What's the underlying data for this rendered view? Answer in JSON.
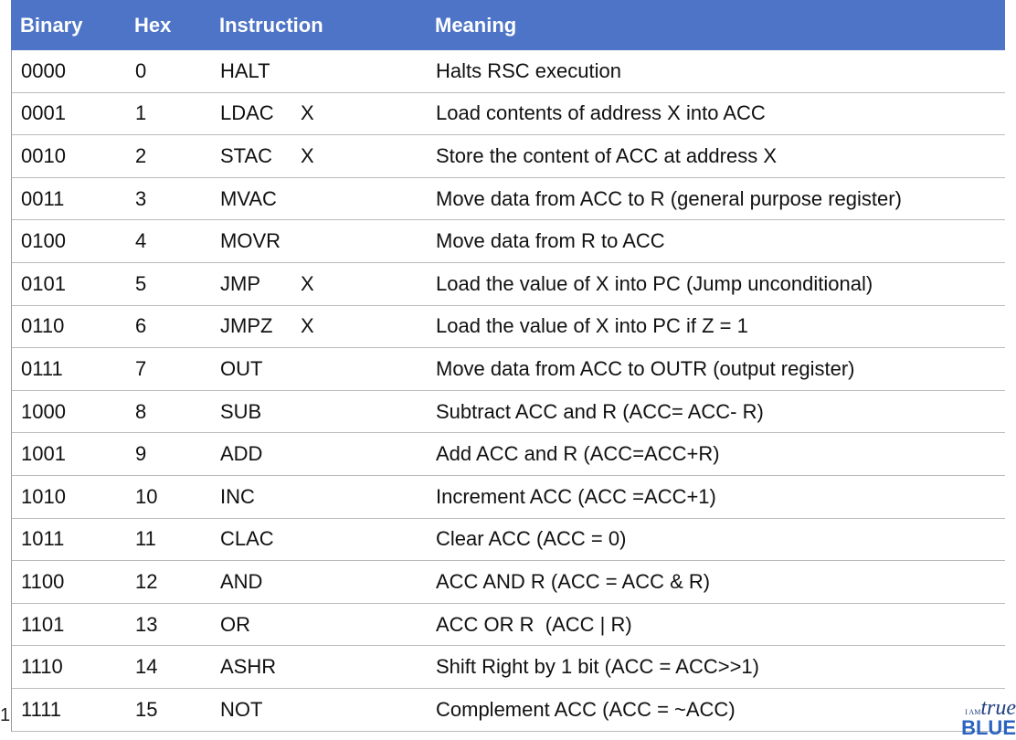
{
  "table": {
    "header": [
      "Binary",
      "Hex",
      "Instruction",
      "Meaning"
    ],
    "rows": [
      {
        "binary": "0000",
        "hex": "0",
        "instruction": "HALT",
        "meaning": "Halts RSC execution"
      },
      {
        "binary": "0001",
        "hex": "1",
        "instruction": "LDAC",
        "operand": "X",
        "meaning": "Load contents of address X into ACC"
      },
      {
        "binary": "0010",
        "hex": "2",
        "instruction": "STAC",
        "operand": "X",
        "meaning": "Store the content of ACC at address X"
      },
      {
        "binary": "0011",
        "hex": "3",
        "instruction": "MVAC",
        "meaning": "Move data from ACC to R (general purpose register)"
      },
      {
        "binary": "0100",
        "hex": "4",
        "instruction": "MOVR",
        "meaning": "Move data from R to ACC"
      },
      {
        "binary": "0101",
        "hex": "5",
        "instruction": "JMP",
        "operand": "X",
        "meaning": "Load the value of X into PC (Jump unconditional)"
      },
      {
        "binary": "0110",
        "hex": "6",
        "instruction": "JMPZ",
        "operand": "X",
        "meaning": "Load the value of X into PC if Z = 1"
      },
      {
        "binary": "0111",
        "hex": "7",
        "instruction": "OUT",
        "meaning": "Move data from ACC to OUTR (output register)"
      },
      {
        "binary": "1000",
        "hex": "8",
        "instruction": "SUB",
        "meaning": "Subtract ACC and R (ACC= ACC- R)"
      },
      {
        "binary": "1001",
        "hex": "9",
        "instruction": "ADD",
        "meaning": "Add ACC and R (ACC=ACC+R)"
      },
      {
        "binary": "1010",
        "hex": "10",
        "instruction": "INC",
        "meaning": "Increment ACC (ACC =ACC+1)"
      },
      {
        "binary": "1011",
        "hex": "11",
        "instruction": "CLAC",
        "meaning": "Clear ACC (ACC = 0)"
      },
      {
        "binary": "1100",
        "hex": "12",
        "instruction": "AND",
        "meaning": "ACC AND R (ACC = ACC & R)"
      },
      {
        "binary": "1101",
        "hex": "13",
        "instruction": "OR",
        "meaning": "ACC OR R  (ACC | R)"
      },
      {
        "binary": "1110",
        "hex": "14",
        "instruction": "ASHR",
        "meaning": "Shift Right by 1 bit (ACC = ACC>>1)"
      },
      {
        "binary": "1111",
        "hex": "15",
        "instruction": "NOT",
        "meaning": "Complement ACC (ACC = ~ACC)"
      }
    ]
  },
  "page_number": "1",
  "logo": {
    "prefix": "I AM",
    "word1": "true",
    "word2": "BLUE"
  }
}
